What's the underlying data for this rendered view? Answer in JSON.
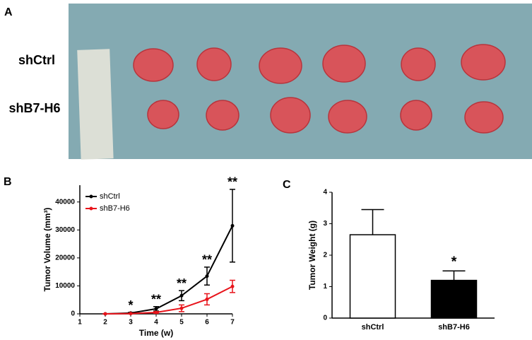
{
  "photo": {
    "panel_label": "A",
    "rows": [
      "shCtrl",
      "shB7-H6"
    ]
  },
  "chart_data": [
    {
      "type": "line",
      "panel_label": "B",
      "x_label": "Time (w)",
      "y_label": "Tumor Volume (mm³)",
      "x": [
        2,
        3,
        4,
        5,
        6,
        7
      ],
      "xlim": [
        1,
        7
      ],
      "xticks": [
        1,
        2,
        3,
        4,
        5,
        6,
        7
      ],
      "ylim": [
        0,
        46000
      ],
      "yticks": [
        0,
        10000,
        20000,
        30000,
        40000
      ],
      "legend": "upper left",
      "series": [
        {
          "name": "shCtrl",
          "color": "#000000",
          "values": [
            0,
            300,
            1800,
            6500,
            13500,
            31500
          ],
          "errors": [
            0,
            200,
            800,
            1800,
            3200,
            13000
          ]
        },
        {
          "name": "shB7-H6",
          "color": "#e8141b",
          "values": [
            0,
            100,
            500,
            2000,
            5200,
            9800
          ],
          "errors": [
            0,
            100,
            300,
            1200,
            2000,
            2200
          ]
        }
      ],
      "annotations": [
        {
          "x": 3,
          "text": "*"
        },
        {
          "x": 4,
          "text": "**"
        },
        {
          "x": 5,
          "text": "**"
        },
        {
          "x": 6,
          "text": "**"
        },
        {
          "x": 7,
          "text": "**"
        }
      ]
    },
    {
      "type": "bar",
      "panel_label": "C",
      "y_label": "Tumor Weight (g)",
      "categories": [
        "shCtrl",
        "shB7-H6"
      ],
      "values": [
        2.65,
        1.2
      ],
      "errors": [
        0.8,
        0.3
      ],
      "colors": [
        "#ffffff",
        "#000000"
      ],
      "ylim": [
        0,
        4
      ],
      "yticks": [
        0,
        1,
        2,
        3,
        4
      ],
      "annotations": [
        {
          "category": 1,
          "text": "*"
        }
      ]
    }
  ]
}
